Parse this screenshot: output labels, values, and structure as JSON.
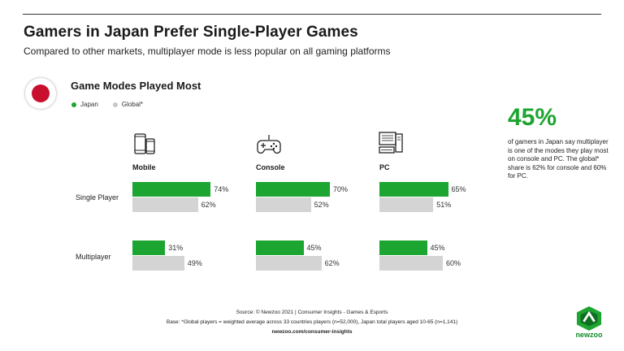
{
  "header": {
    "title": "Gamers in Japan Prefer Single-Player Games",
    "subtitle": "Compared to other markets, multiplayer mode is less popular on all gaming platforms"
  },
  "section": {
    "title": "Game Modes Played Most",
    "flag_icon": "japan-flag-icon"
  },
  "legend": {
    "japan": "Japan",
    "global": "Global*"
  },
  "colors": {
    "japan": "#1ca530",
    "global": "#d4d4d4",
    "accent": "#1ca530"
  },
  "chart_data": {
    "type": "bar",
    "orientation": "horizontal",
    "title": "Game Modes Played Most",
    "unit": "%",
    "xlim": [
      0,
      100
    ],
    "platforms": [
      "Mobile",
      "Console",
      "PC"
    ],
    "categories": [
      "Single Player",
      "Multiplayer"
    ],
    "series": [
      {
        "name": "Japan",
        "values": {
          "Mobile": [
            74,
            31
          ],
          "Console": [
            70,
            45
          ],
          "PC": [
            65,
            45
          ]
        },
        "labels": {
          "Mobile": [
            "74%",
            "31%"
          ],
          "Console": [
            "70%",
            "45%"
          ],
          "PC": [
            "65%",
            "45%"
          ]
        }
      },
      {
        "name": "Global*",
        "values": {
          "Mobile": [
            62,
            49
          ],
          "Console": [
            52,
            62
          ],
          "PC": [
            51,
            60
          ]
        },
        "labels": {
          "Mobile": [
            "62%",
            "49%"
          ],
          "Console": [
            "52%",
            "62%"
          ],
          "PC": [
            "51%",
            "60%"
          ]
        }
      }
    ],
    "legend": "top-left",
    "grid": false
  },
  "platform_icons": [
    "mobile-devices-icon",
    "gamepad-icon",
    "desktop-pc-icon"
  ],
  "stat": {
    "value": "45%",
    "text": "of gamers in Japan say multiplayer is one of the modes they play most on console and PC. The global* share is 62% for console and 60% for PC."
  },
  "footer": {
    "source": "Source: © Newzoo 2021 | Consumer Insights - Games & Esports",
    "base": "Base: *Global players = weighted average across 33 countries players (n=52,000),  Japan total players aged 10-65 (n=1,141)",
    "url": "newzoo.com/consumer-insights"
  },
  "brand": {
    "name": "newzoo",
    "logo_icon": "newzoo-logo-icon"
  }
}
